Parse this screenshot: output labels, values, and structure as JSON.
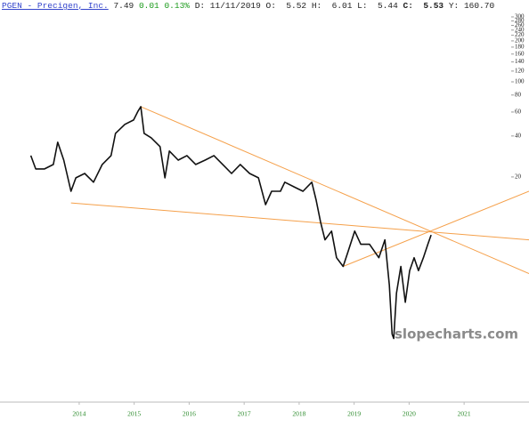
{
  "header": {
    "symbol": "PGEN - Precigen, Inc.",
    "last": "7.49",
    "change": "0.01",
    "change_pct": "0.13%",
    "date_label": "D:",
    "date": "11/11/2019",
    "open_label": "O:",
    "open": "5.52",
    "high_label": "H:",
    "high": "6.01",
    "low_label": "L:",
    "low": "5.44",
    "close_label": "C:",
    "close": "5.53",
    "y_label": "Y:",
    "y_value": "160.70"
  },
  "chart_data": {
    "type": "line",
    "log_scale": true,
    "color": "#111111",
    "trendline_color": "#f5a04a",
    "watermark": "slopecharts.com",
    "xlim": [
      2012.56,
      2022.18
    ],
    "xticks": [
      2014,
      2015,
      2016,
      2017,
      2018,
      2019,
      2020,
      2021
    ],
    "ylim": [
      0.5,
      300
    ],
    "yticks": [
      20,
      40,
      60,
      80,
      100,
      120,
      140,
      160,
      180,
      200,
      220,
      240,
      260,
      280,
      300
    ],
    "x": [
      2013.12,
      2013.21,
      2013.37,
      2013.53,
      2013.61,
      2013.72,
      2013.85,
      2013.94,
      2014.1,
      2014.26,
      2014.42,
      2014.58,
      2014.66,
      2014.83,
      2014.99,
      2015.07,
      2015.12,
      2015.18,
      2015.31,
      2015.47,
      2015.56,
      2015.64,
      2015.8,
      2015.96,
      2016.12,
      2016.29,
      2016.45,
      2016.61,
      2016.77,
      2016.93,
      2017.1,
      2017.26,
      2017.39,
      2017.5,
      2017.66,
      2017.74,
      2017.91,
      2018.07,
      2018.23,
      2018.31,
      2018.39,
      2018.47,
      2018.59,
      2018.68,
      2018.8,
      2018.88,
      2019.01,
      2019.12,
      2019.28,
      2019.45,
      2019.56,
      2019.64,
      2019.69,
      2019.72,
      2019.77,
      2019.85,
      2019.93,
      2020.01,
      2020.09,
      2020.17,
      2020.26,
      2020.34,
      2020.4
    ],
    "values": [
      28.7,
      22.9,
      22.9,
      24.7,
      36.0,
      26.6,
      15.7,
      19.7,
      21.2,
      18.3,
      24.7,
      28.7,
      41.8,
      48.7,
      52.4,
      60.9,
      65.7,
      41.8,
      38.8,
      33.4,
      19.7,
      31.0,
      26.6,
      28.7,
      24.7,
      26.6,
      28.7,
      24.7,
      21.2,
      24.7,
      21.2,
      19.7,
      12.5,
      15.7,
      15.7,
      18.3,
      16.9,
      15.7,
      18.3,
      13.5,
      9.3,
      6.9,
      8.0,
      5.1,
      4.4,
      5.5,
      8.0,
      6.4,
      6.4,
      5.1,
      6.9,
      3.2,
      1.4,
      1.3,
      2.8,
      4.4,
      2.4,
      4.1,
      5.1,
      4.1,
      5.1,
      6.4,
      7.5
    ],
    "trendlines": [
      {
        "x": [
          2015.12,
          2022.18
        ],
        "values": [
          65.7,
          3.9
        ]
      },
      {
        "x": [
          2013.85,
          2022.18
        ],
        "values": [
          12.9,
          6.9
        ]
      },
      {
        "x": [
          2018.8,
          2022.18
        ],
        "values": [
          4.4,
          15.7
        ]
      }
    ]
  }
}
